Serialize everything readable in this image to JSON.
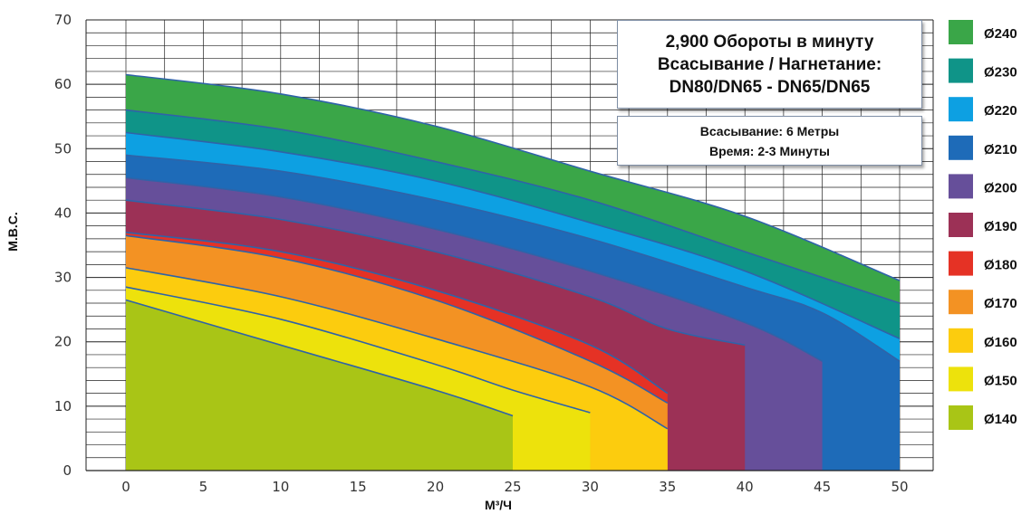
{
  "chart_data": {
    "type": "area",
    "xlabel": "М³/Ч",
    "ylabel": "М.В.С.",
    "xlim": [
      0,
      50
    ],
    "ylim": [
      0,
      70
    ],
    "x_ticks": [
      0,
      5,
      10,
      15,
      20,
      25,
      30,
      35,
      40,
      45,
      50
    ],
    "y_ticks": [
      0,
      10,
      20,
      30,
      40,
      50,
      60,
      70
    ],
    "grid": true,
    "legend_position": "right",
    "annotations": {
      "main": [
        "2,900 Обороты в минуту",
        "Всасывание / Нагнетание:",
        "DN80/DN65 - DN65/DN65"
      ],
      "sub": [
        "Всасывание: 6 Метры",
        "Время: 2-3 Минуты"
      ]
    },
    "series": [
      {
        "name": "Ø240",
        "color": "#3aa648",
        "x": [
          0,
          10,
          20,
          30,
          40,
          50
        ],
        "values": [
          61.5,
          58.5,
          53.5,
          46.5,
          39.5,
          29.5
        ]
      },
      {
        "name": "Ø230",
        "color": "#0f9488",
        "x": [
          0,
          10,
          20,
          30,
          40,
          50
        ],
        "values": [
          56,
          53,
          48,
          42,
          34,
          26
        ]
      },
      {
        "name": "Ø220",
        "color": "#0da0e2",
        "x": [
          0,
          10,
          20,
          30,
          40,
          50
        ],
        "values": [
          52.5,
          49.5,
          45,
          38.5,
          31,
          20.5
        ]
      },
      {
        "name": "Ø210",
        "color": "#1e6bb8",
        "x": [
          0,
          10,
          20,
          30,
          40,
          45,
          50
        ],
        "values": [
          49,
          46.5,
          42,
          36,
          28.5,
          24.5,
          17
        ]
      },
      {
        "name": "Ø200",
        "color": "#664f9a",
        "x": [
          0,
          10,
          20,
          30,
          40,
          45
        ],
        "values": [
          45.5,
          42.5,
          37.5,
          31,
          23,
          17
        ]
      },
      {
        "name": "Ø190",
        "color": "#9c3156",
        "x": [
          0,
          10,
          20,
          30,
          35,
          40
        ],
        "values": [
          42,
          39,
          34,
          27,
          22,
          19.5
        ]
      },
      {
        "name": "Ø180",
        "color": "#e53225",
        "x": [
          0,
          10,
          20,
          30,
          35
        ],
        "values": [
          37,
          34,
          28,
          19.5,
          12
        ]
      },
      {
        "name": "Ø170",
        "color": "#f39223",
        "x": [
          0,
          10,
          20,
          30,
          35
        ],
        "values": [
          36.5,
          33,
          26.5,
          17,
          10.5
        ]
      },
      {
        "name": "Ø160",
        "color": "#fccc0e",
        "x": [
          0,
          10,
          20,
          30,
          35
        ],
        "values": [
          31.5,
          27,
          20.5,
          13,
          6.5
        ]
      },
      {
        "name": "Ø150",
        "color": "#ede20c",
        "x": [
          0,
          10,
          20,
          25,
          30
        ],
        "values": [
          28.5,
          23.5,
          16.5,
          12.5,
          9
        ]
      },
      {
        "name": "Ø140",
        "color": "#a9c516",
        "x": [
          0,
          10,
          20,
          25
        ],
        "values": [
          26.5,
          19.5,
          12.5,
          8.5
        ]
      }
    ]
  }
}
